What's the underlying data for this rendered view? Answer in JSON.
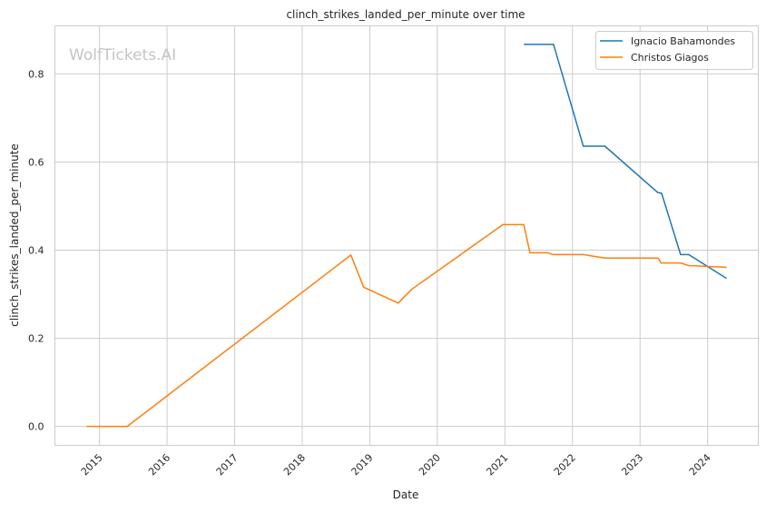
{
  "chart_data": {
    "type": "line",
    "title": "clinch_strikes_landed_per_minute over time",
    "xlabel": "Date",
    "ylabel": "clinch_strikes_landed_per_minute",
    "watermark": "WolfTickets.AI",
    "xlim": [
      2014.34,
      2024.75
    ],
    "ylim": [
      -0.043,
      0.909
    ],
    "grid": true,
    "legend_position": "top-right",
    "x_ticks": [
      2015,
      2016,
      2017,
      2018,
      2019,
      2020,
      2021,
      2022,
      2023,
      2024
    ],
    "x_tick_labels": [
      "2015",
      "2016",
      "2017",
      "2018",
      "2019",
      "2020",
      "2021",
      "2022",
      "2023",
      "2024"
    ],
    "y_ticks": [
      0.0,
      0.2,
      0.4,
      0.6,
      0.8
    ],
    "y_tick_labels": [
      "0.0",
      "0.2",
      "0.4",
      "0.6",
      "0.8"
    ],
    "series": [
      {
        "name": "Ignacio Bahamondes",
        "color": "#1f77b4",
        "x": [
          2021.28,
          2021.72,
          2022.16,
          2022.48,
          2023.26,
          2023.32,
          2023.6,
          2023.72,
          2024.28
        ],
        "y": [
          0.867,
          0.867,
          0.636,
          0.636,
          0.531,
          0.529,
          0.39,
          0.39,
          0.336
        ]
      },
      {
        "name": "Christos Giagos",
        "color": "#ff7f0e",
        "x": [
          2014.81,
          2015.41,
          2018.72,
          2018.91,
          2019.42,
          2019.62,
          2020.97,
          2021.28,
          2021.37,
          2021.64,
          2021.71,
          2022.16,
          2022.48,
          2023.27,
          2023.31,
          2023.6,
          2023.72,
          2024.01,
          2024.28
        ],
        "y": [
          0.0,
          0.0,
          0.389,
          0.316,
          0.28,
          0.311,
          0.458,
          0.458,
          0.394,
          0.394,
          0.39,
          0.39,
          0.382,
          0.382,
          0.371,
          0.371,
          0.365,
          0.363,
          0.361
        ]
      }
    ]
  }
}
